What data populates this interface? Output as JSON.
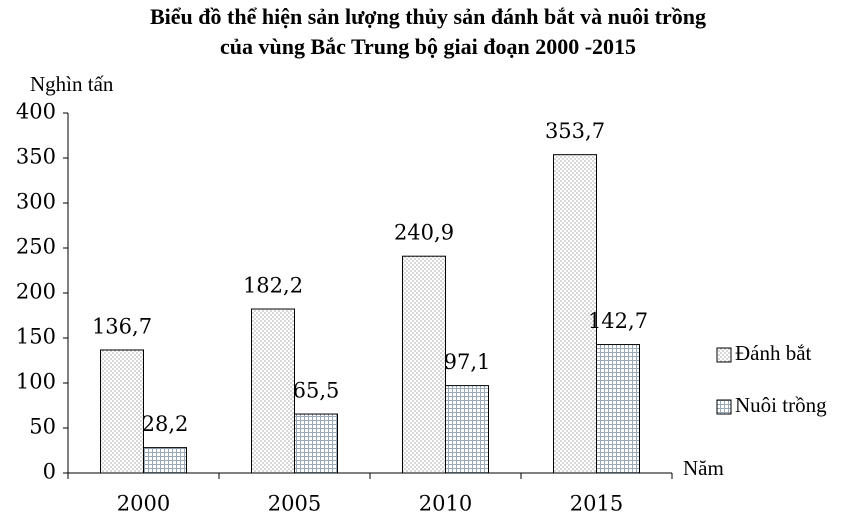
{
  "chart_data": {
    "type": "bar",
    "title": "Biểu đồ thể hiện sản lượng thủy sản đánh bắt và nuôi trồng",
    "subtitle": "của vùng Bắc Trung bộ giai đoạn 2000 -2015",
    "y_label": "Nghìn tấn",
    "x_label": "Năm",
    "categories": [
      "2000",
      "2005",
      "2010",
      "2015"
    ],
    "series": [
      {
        "name": "Đánh bắt",
        "values": [
          136.7,
          182.2,
          240.9,
          353.7
        ],
        "value_labels": [
          "136,7",
          "182,2",
          "240,9",
          "353,7"
        ]
      },
      {
        "name": "Nuôi trồng",
        "values": [
          28.2,
          65.5,
          97.1,
          142.7
        ],
        "value_labels": [
          "28,2",
          "65,5",
          "97,1",
          "142,7"
        ]
      }
    ],
    "ylim": [
      0,
      400
    ],
    "yticks": [
      0,
      50,
      100,
      150,
      200,
      250,
      300,
      350,
      400
    ],
    "legend": "right"
  }
}
